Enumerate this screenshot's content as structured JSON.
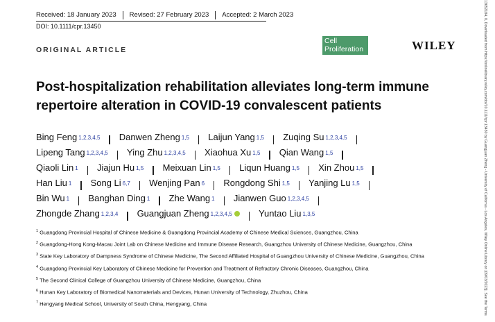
{
  "header": {
    "received": "Received: 18 January 2023",
    "revised": "Revised: 27 February 2023",
    "accepted": "Accepted: 2 March 2023",
    "doi": "DOI: 10.1111/cpr.13450"
  },
  "article_type": "ORIGINAL ARTICLE",
  "journal": {
    "line1": "Cell",
    "line2": "Proliferation",
    "publisher": "WILEY"
  },
  "title": "Post-hospitalization rehabilitation alleviates long-term immune repertoire alteration in COVID-19 convalescent patients",
  "author_rows": [
    [
      {
        "name": "Bing Feng",
        "aff": "1,2,3,4,5"
      },
      {
        "name": "Danwen Zheng",
        "aff": "1,5"
      },
      {
        "name": "Laijun Yang",
        "aff": "1,5"
      },
      {
        "name": "Zuqing Su",
        "aff": "1,2,3,4,5"
      }
    ],
    [
      {
        "name": "Lipeng Tang",
        "aff": "1,2,3,4,5"
      },
      {
        "name": "Ying Zhu",
        "aff": "1,2,3,4,5"
      },
      {
        "name": "Xiaohua Xu",
        "aff": "1,5"
      },
      {
        "name": "Qian Wang",
        "aff": "1,5"
      }
    ],
    [
      {
        "name": "Qiaoli Lin",
        "aff": "1"
      },
      {
        "name": "Jiajun Hu",
        "aff": "1,5"
      },
      {
        "name": "Meixuan Lin",
        "aff": "1,5"
      },
      {
        "name": "Liqun Huang",
        "aff": "1,5"
      },
      {
        "name": "Xin Zhou",
        "aff": "1,5"
      }
    ],
    [
      {
        "name": "Han Liu",
        "aff": "1"
      },
      {
        "name": "Song Li",
        "aff": "6,7"
      },
      {
        "name": "Wenjing Pan",
        "aff": "6"
      },
      {
        "name": "Rongdong Shi",
        "aff": "1,5"
      },
      {
        "name": "Yanjing Lu",
        "aff": "1,5"
      }
    ],
    [
      {
        "name": "Bin Wu",
        "aff": "1"
      },
      {
        "name": "Banghan Ding",
        "aff": "1"
      },
      {
        "name": "Zhe Wang",
        "aff": "1"
      },
      {
        "name": "Jianwen Guo",
        "aff": "1,2,3,4,5"
      }
    ],
    [
      {
        "name": "Zhongde Zhang",
        "aff": "1,2,3,4"
      },
      {
        "name": "Guangjuan Zheng",
        "aff": "1,2,3,4,5"
      },
      {
        "name": "Yuntao Liu",
        "aff": "1,3,5"
      }
    ]
  ],
  "affiliations": [
    {
      "num": "1",
      "text": "Guangdong Provincial Hospital of Chinese Medicine & Guangdong Provincial Academy of Chinese Medical Sciences, Guangzhou, China"
    },
    {
      "num": "2",
      "text": "Guangdong-Hong Kong-Macau Joint Lab on Chinese Medicine and Immune Disease Research, Guangzhou University of Chinese Medicine, Guangzhou, China"
    },
    {
      "num": "3",
      "text": "State Key Laboratory of Dampness Syndrome of Chinese Medicine, The Second Affiliated Hospital of Guangzhou University of Chinese Medicine, Guangzhou, China"
    },
    {
      "num": "4",
      "text": "Guangdong Provincial Key Laboratory of Chinese Medicine for Prevention and Treatment of Refractory Chronic Diseases, Guangzhou, China"
    },
    {
      "num": "5",
      "text": "The Second Clinical College of Guangzhou University of Chinese Medicine, Guangzhou, China"
    },
    {
      "num": "6",
      "text": "Hunan Key Laboratory of Biomedical Nanomaterials and Devices, Hunan University of Technology, Zhuzhou, China"
    },
    {
      "num": "7",
      "text": "Hengyang Medical School, University of South China, Hengyang, China"
    }
  ],
  "side_note": "13652184, 0, Downloaded from https://onlinelibrary.wiley.com/doi/10.1111/cpr.13450 by Guangjuan Zheng - University of California - Los Angeles, Wiley Online Library on [09/03/2023]. See the Terms"
}
